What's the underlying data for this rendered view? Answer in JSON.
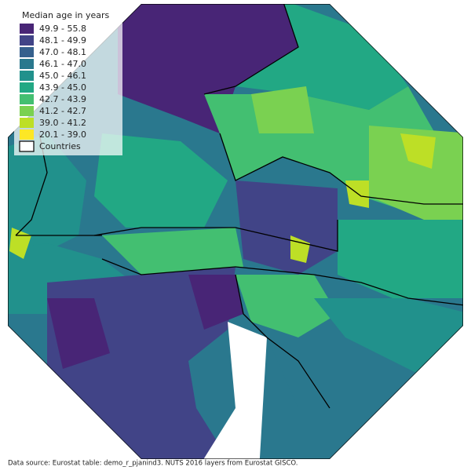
{
  "legend": {
    "title": "Median age in years",
    "items": [
      {
        "label": "49.9 - 55.8",
        "color": "#482576"
      },
      {
        "label": "48.1 - 49.9",
        "color": "#414487"
      },
      {
        "label": "47.0 - 48.1",
        "color": "#35608d"
      },
      {
        "label": "46.1 - 47.0",
        "color": "#2a788e"
      },
      {
        "label": "45.0 - 46.1",
        "color": "#21918c"
      },
      {
        "label": "43.9 - 45.0",
        "color": "#22a884"
      },
      {
        "label": "42.7 - 43.9",
        "color": "#43bf71"
      },
      {
        "label": "41.2 - 42.7",
        "color": "#7ad151"
      },
      {
        "label": "39.0 - 41.2",
        "color": "#bddf26"
      },
      {
        "label": "20.1 - 39.0",
        "color": "#fde725"
      }
    ],
    "countries": "Countries"
  },
  "source": "Data source: Eurostat table: demo_r_pjanind3. NUTS 2016 layers from Eurostat GISCO."
}
